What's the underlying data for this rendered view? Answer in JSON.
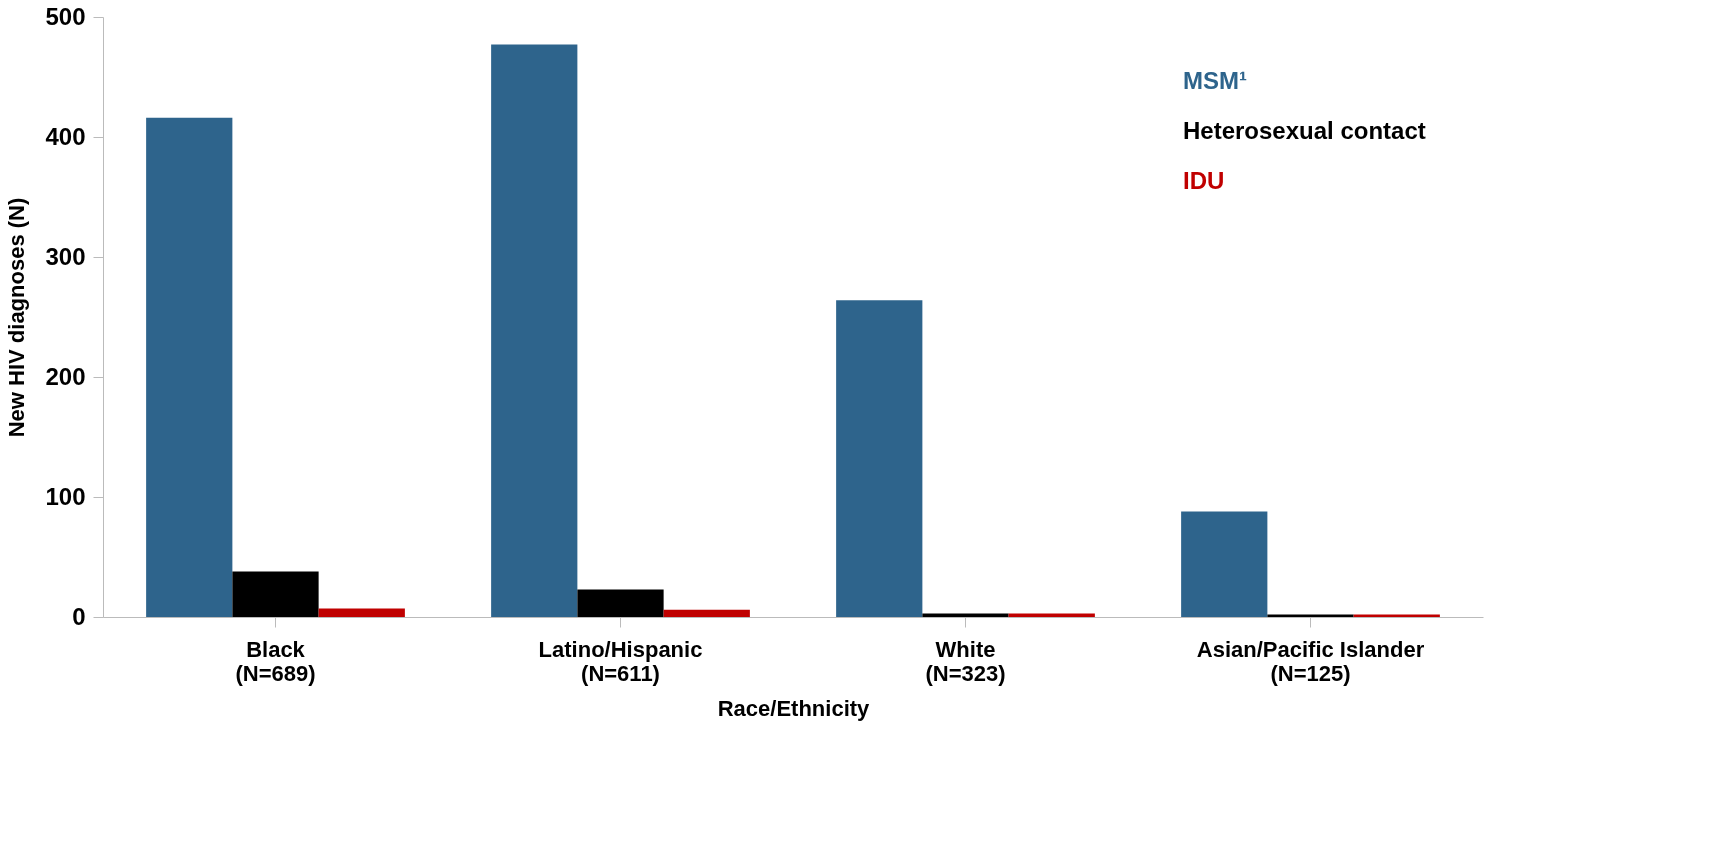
{
  "chart_data": {
    "type": "bar",
    "xlabel": "Race/Ethnicity",
    "ylabel": "New HIV diagnoses (N)",
    "categories": [
      "Black\n(N=689)",
      "Latino/Hispanic\n(N=611)",
      "White\n(N=323)",
      "Asian/Pacific Islander\n(N=125)"
    ],
    "series": [
      {
        "name": "MSM¹",
        "color": "#2e648c",
        "values": [
          416,
          477,
          264,
          88
        ]
      },
      {
        "name": "Heterosexual contact",
        "color": "#000000",
        "values": [
          38,
          23,
          3,
          2
        ]
      },
      {
        "name": "IDU",
        "color": "#c00000",
        "values": [
          7,
          6,
          3,
          2
        ]
      }
    ],
    "ylim": [
      0,
      500
    ],
    "yticks": [
      0,
      100,
      200,
      300,
      400,
      500
    ],
    "grid": false,
    "legend": "top right"
  }
}
